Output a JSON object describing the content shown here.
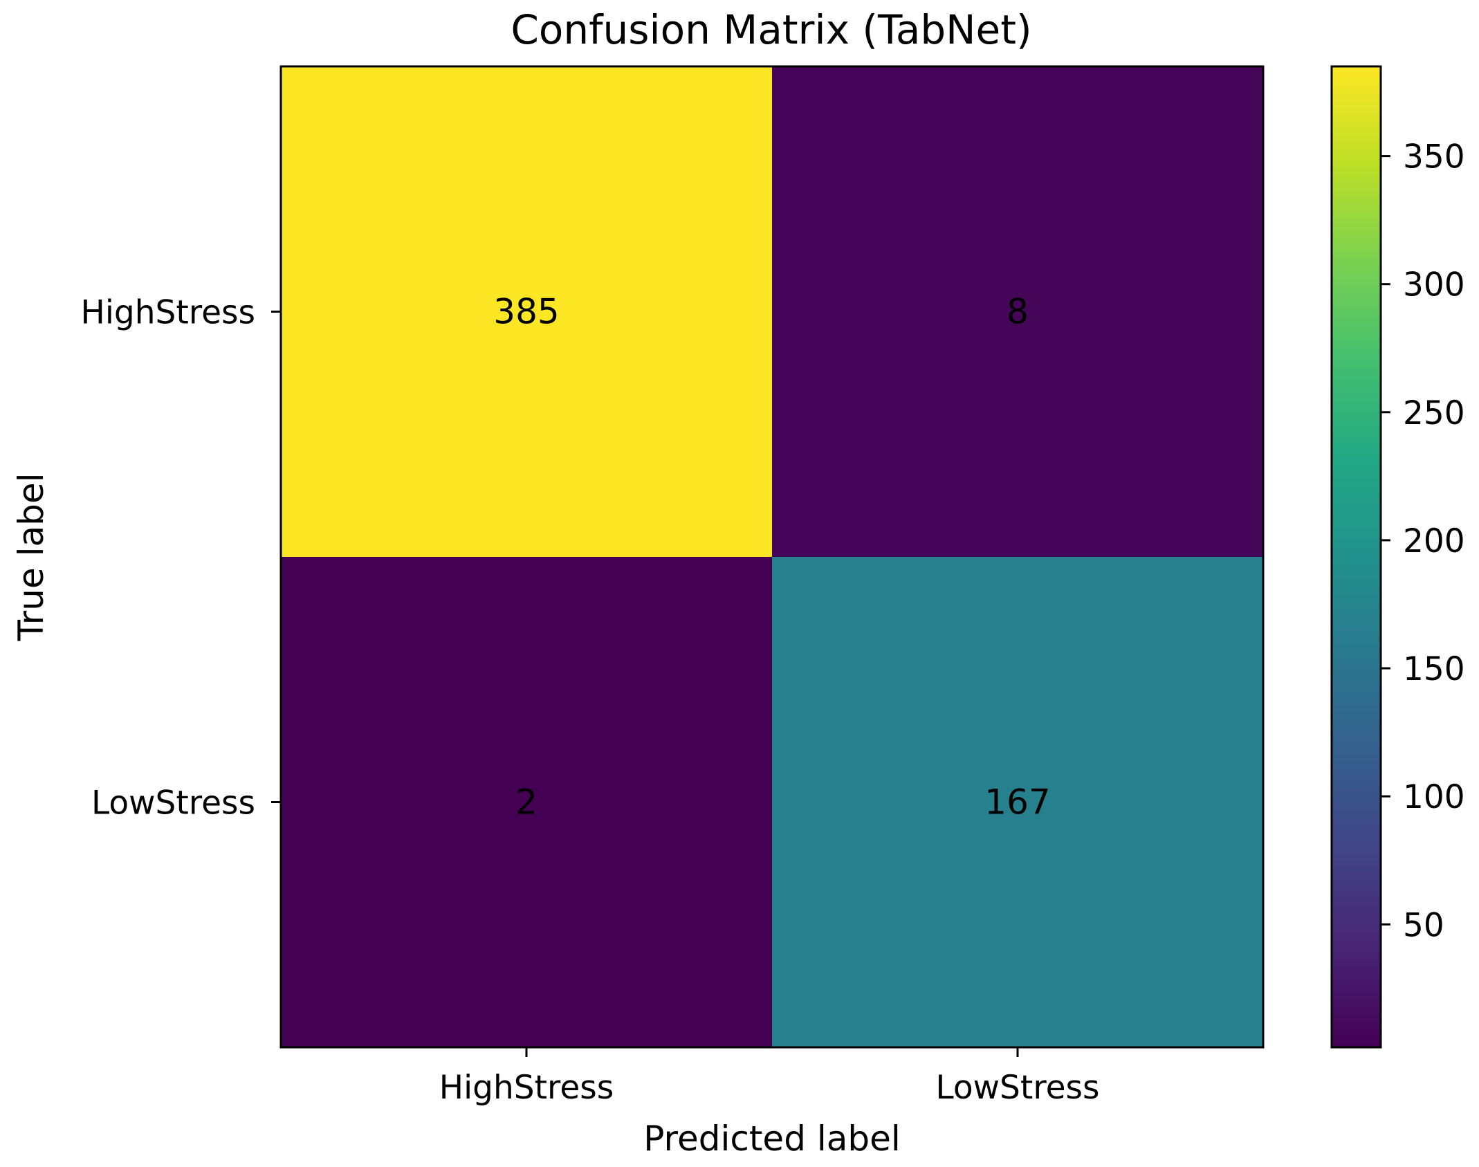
{
  "chart_data": {
    "type": "heatmap",
    "title": "Confusion Matrix (TabNet)",
    "xlabel": "Predicted label",
    "ylabel": "True label",
    "x_categories": [
      "HighStress",
      "LowStress"
    ],
    "y_categories": [
      "HighStress",
      "LowStress"
    ],
    "values": [
      [
        385,
        8
      ],
      [
        2,
        167
      ]
    ],
    "colormap": "viridis",
    "colorbar": {
      "range": [
        2,
        385
      ],
      "ticks": [
        50,
        100,
        150,
        200,
        250,
        300,
        350
      ]
    },
    "grid": false
  }
}
